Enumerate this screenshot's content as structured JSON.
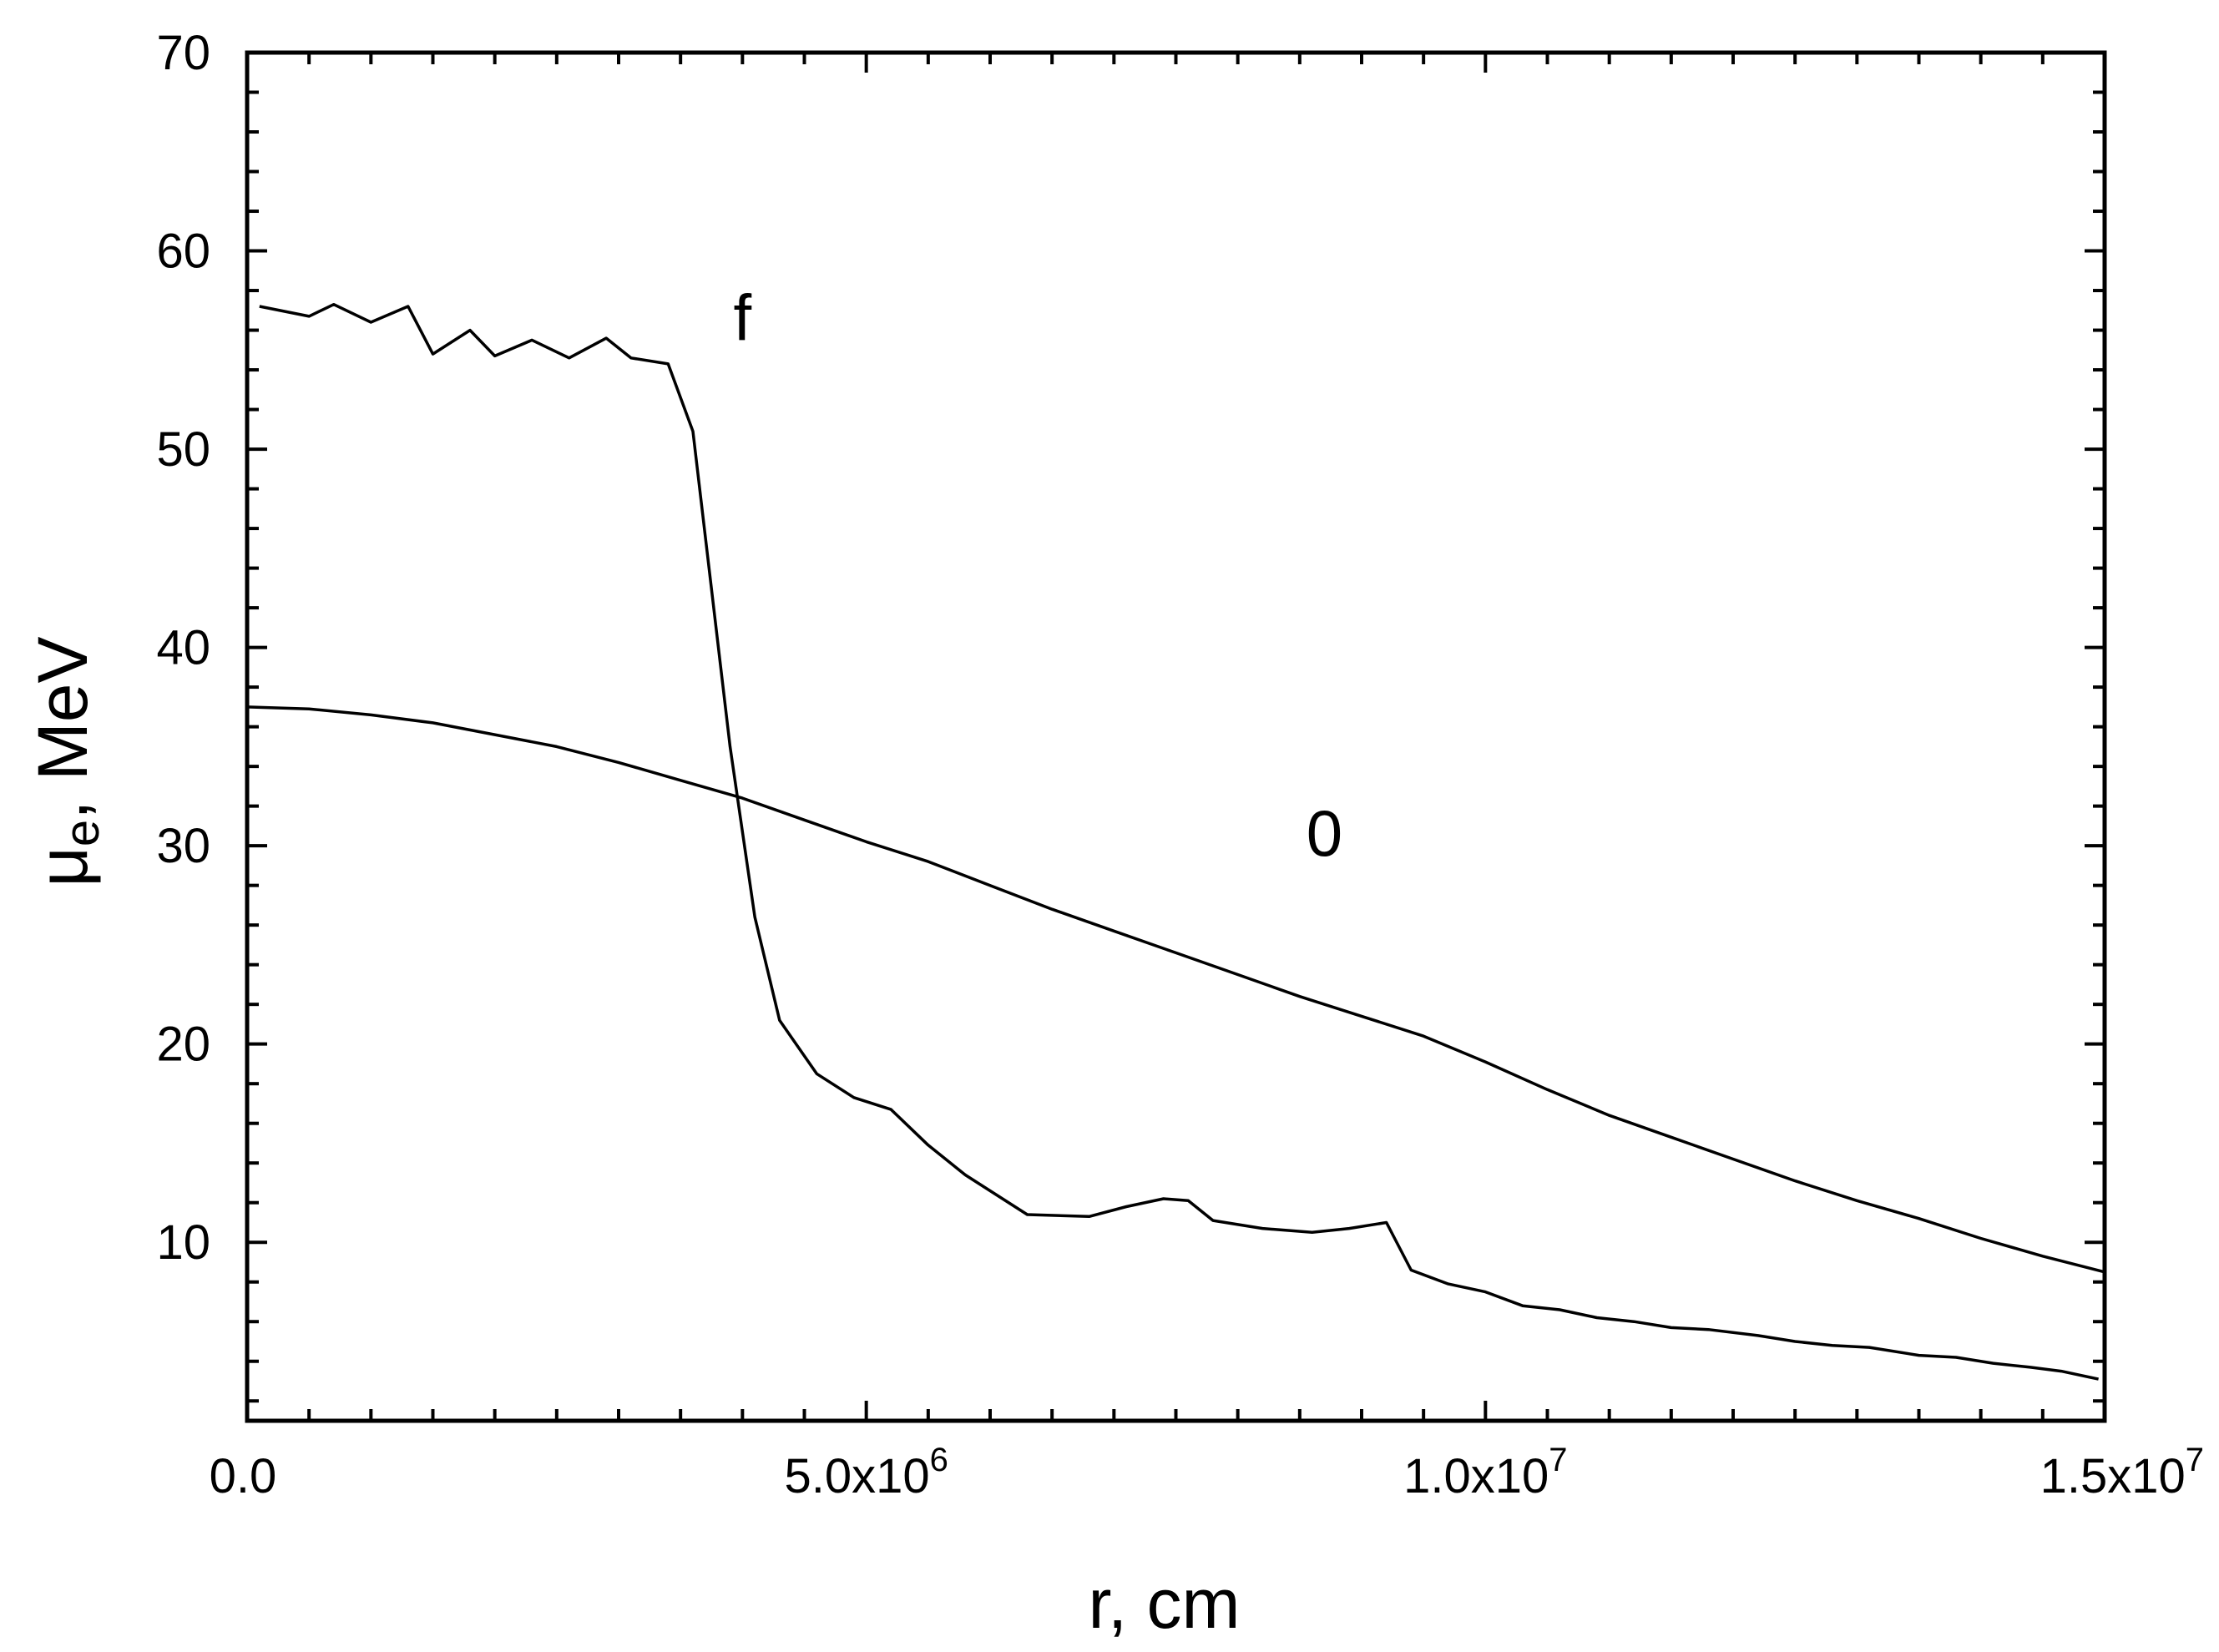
{
  "chart_data": {
    "type": "line",
    "xlabel": "r, cm",
    "ylabel": "μ",
    "ylabel_subscript": "e",
    "ylabel_suffix": ", MeV",
    "xlim": [
      0,
      15000000
    ],
    "ylim": [
      1,
      70
    ],
    "x_ticks": [
      {
        "value": 0,
        "label": "0.0",
        "exp": ""
      },
      {
        "value": 5000000,
        "label": "5.0x10",
        "exp": "6"
      },
      {
        "value": 10000000,
        "label": "1.0x10",
        "exp": "7"
      },
      {
        "value": 15000000,
        "label": "1.5x10",
        "exp": "7"
      }
    ],
    "y_ticks": [
      {
        "value": 10,
        "label": "10"
      },
      {
        "value": 20,
        "label": "20"
      },
      {
        "value": 30,
        "label": "30"
      },
      {
        "value": 40,
        "label": "40"
      },
      {
        "value": 50,
        "label": "50"
      },
      {
        "value": 60,
        "label": "60"
      },
      {
        "value": 70,
        "label": "70"
      }
    ],
    "series": [
      {
        "name": "f",
        "label_at": [
          4000000,
          55.5
        ],
        "x": [
          100000,
          500000,
          700000,
          1000000,
          1300000,
          1500000,
          1800000,
          2000000,
          2300000,
          2600000,
          2900000,
          3100000,
          3400000,
          3600000,
          3900000,
          4100000,
          4300000,
          4600000,
          4900000,
          5200000,
          5500000,
          5800000,
          6300000,
          6800000,
          7100000,
          7400000,
          7600000,
          7800000,
          8200000,
          8600000,
          8900000,
          9200000,
          9400000,
          9700000,
          10000000,
          10300000,
          10600000,
          10900000,
          11200000,
          11500000,
          11800000,
          12200000,
          12500000,
          12800000,
          13100000,
          13500000,
          13800000,
          14100000,
          14400000,
          14650000,
          14950000
        ],
        "y": [
          57.2,
          56.7,
          57.3,
          56.4,
          57.2,
          54.8,
          56.0,
          54.7,
          55.5,
          54.6,
          55.6,
          54.6,
          54.3,
          50.9,
          35.0,
          26.4,
          21.2,
          18.5,
          17.3,
          16.7,
          14.9,
          13.4,
          11.4,
          11.3,
          11.8,
          12.2,
          12.1,
          11.1,
          10.7,
          10.5,
          10.7,
          11.0,
          8.6,
          7.9,
          7.5,
          6.8,
          6.6,
          6.2,
          6.0,
          5.7,
          5.6,
          5.3,
          5.0,
          4.8,
          4.7,
          4.3,
          4.2,
          3.9,
          3.7,
          3.5,
          3.1
        ]
      },
      {
        "name": "0",
        "label_at": [
          8700000,
          29.5
        ],
        "x": [
          0,
          500000,
          1000000,
          1500000,
          2000000,
          2500000,
          3000000,
          3500000,
          4000000,
          4500000,
          5000000,
          5500000,
          6000000,
          6500000,
          7000000,
          7500000,
          8000000,
          8500000,
          9000000,
          9500000,
          10000000,
          10500000,
          11000000,
          11500000,
          12000000,
          12500000,
          13000000,
          13500000,
          14000000,
          14500000,
          15000000
        ],
        "y": [
          37.0,
          36.9,
          36.6,
          36.2,
          35.6,
          35.0,
          34.2,
          33.3,
          32.4,
          31.3,
          30.2,
          29.2,
          28.0,
          26.8,
          25.7,
          24.6,
          23.5,
          22.4,
          21.4,
          20.4,
          19.1,
          17.7,
          16.4,
          15.3,
          14.2,
          13.1,
          12.1,
          11.2,
          10.2,
          9.3,
          8.5
        ]
      }
    ],
    "grid": false,
    "legend": "none"
  }
}
